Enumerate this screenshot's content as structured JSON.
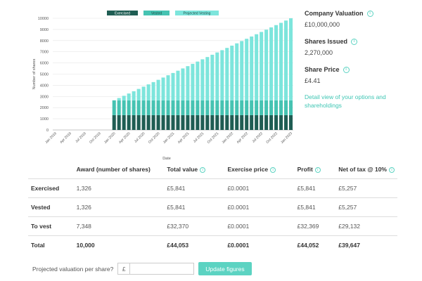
{
  "chart_data": {
    "type": "bar",
    "stacked": true,
    "legend": [
      "Exercised",
      "Vested",
      "Projected Vesting"
    ],
    "colors": {
      "Exercised": "#1f5d53",
      "Vested": "#46c3b2",
      "Projected Vesting": "#7de5dc"
    },
    "xlabel": "Date",
    "ylabel": "Number of shares",
    "ylim": [
      0,
      10000
    ],
    "yticks": [
      0,
      1000,
      2000,
      3000,
      4000,
      5000,
      6000,
      7000,
      8000,
      9000,
      10000
    ],
    "xtick_labels": [
      "Jan 2019",
      "Apr 2019",
      "Jul 2019",
      "Oct 2019",
      "Jan 2020",
      "Apr 2020",
      "Jul 2020",
      "Oct 2020",
      "Jan 2021",
      "Apr 2021",
      "Jul 2021",
      "Oct 2021",
      "Jan 2022",
      "Apr 2022",
      "Jul 2022",
      "Oct 2022",
      "Jan 2023"
    ],
    "start_month_index": 12,
    "total_months": 49,
    "series": [
      {
        "name": "Exercised",
        "constant": 1326
      },
      {
        "name": "Vested",
        "constant": 1326
      },
      {
        "name": "Projected Vesting",
        "start": 0,
        "end": 7348
      }
    ]
  },
  "side": {
    "valuation_label": "Company Valuation",
    "valuation_value": "£10,000,000",
    "shares_label": "Shares Issued",
    "shares_value": "2,270,000",
    "price_label": "Share Price",
    "price_value": "£4.41",
    "detail_link": "Detail view of your options and shareholdings"
  },
  "table": {
    "headers": [
      "",
      "Award (number of shares)",
      "Total value",
      "Exercise price",
      "Profit",
      "Net of tax @ 10%"
    ],
    "header_info": [
      false,
      false,
      true,
      true,
      true,
      true
    ],
    "rows": [
      [
        "Exercised",
        "1,326",
        "£5,841",
        "£0.0001",
        "£5,841",
        "£5,257"
      ],
      [
        "Vested",
        "1,326",
        "£5,841",
        "£0.0001",
        "£5,841",
        "£5,257"
      ],
      [
        "To vest",
        "7,348",
        "£32,370",
        "£0.0001",
        "£32,369",
        "£29,132"
      ],
      [
        "Total",
        "10,000",
        "£44,053",
        "£0.0001",
        "£44,052",
        "£39,647"
      ]
    ]
  },
  "form": {
    "label": "Projected valuation per share?",
    "currency": "£",
    "value": "",
    "button": "Update figures"
  },
  "info_glyph": "i"
}
